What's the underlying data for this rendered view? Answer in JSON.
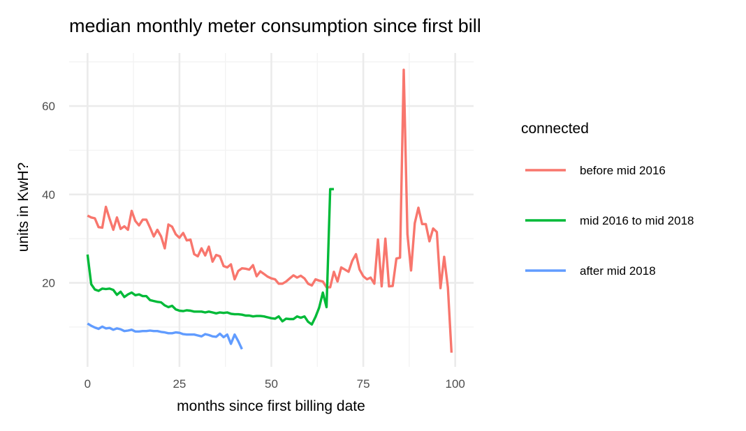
{
  "chart_data": {
    "type": "line",
    "title": "median monthly meter consumption since first bill",
    "xlabel": "months since first billing date",
    "ylabel": "units in KwH?",
    "xlim": [
      -5,
      105
    ],
    "ylim": [
      1,
      72
    ],
    "x_ticks": [
      0,
      25,
      50,
      75,
      100
    ],
    "y_ticks": [
      20,
      40,
      60
    ],
    "grid": true,
    "legend": {
      "title": "connected",
      "placement": "right"
    },
    "series": [
      {
        "name": "before mid 2016",
        "color": "#F8766D",
        "x": [
          0,
          1,
          2,
          3,
          4,
          5,
          6,
          7,
          8,
          9,
          10,
          11,
          12,
          13,
          14,
          15,
          16,
          17,
          18,
          19,
          20,
          21,
          22,
          23,
          24,
          25,
          26,
          27,
          28,
          29,
          30,
          31,
          32,
          33,
          34,
          35,
          36,
          37,
          38,
          39,
          40,
          41,
          42,
          43,
          44,
          45,
          46,
          47,
          48,
          49,
          50,
          51,
          52,
          53,
          54,
          55,
          56,
          57,
          58,
          59,
          60,
          61,
          62,
          63,
          64,
          65,
          66,
          67,
          68,
          69,
          70,
          71,
          72,
          73,
          74,
          75,
          76,
          77,
          78,
          79,
          80,
          81,
          82,
          83,
          84,
          85,
          86,
          87,
          88,
          89,
          90,
          91,
          92,
          93,
          94,
          95,
          96,
          97,
          98,
          99
        ],
        "values": [
          35.2,
          34.8,
          34.6,
          32.6,
          32.5,
          37.2,
          34.5,
          32.0,
          34.8,
          32.2,
          32.8,
          32.0,
          36.3,
          34.0,
          33.0,
          34.3,
          34.3,
          32.5,
          30.5,
          32.0,
          30.5,
          27.8,
          33.2,
          32.7,
          31.0,
          30.2,
          31.3,
          29.6,
          29.8,
          26.5,
          26.0,
          27.8,
          26.2,
          28.2,
          24.8,
          26.3,
          26.0,
          23.8,
          23.5,
          24.2,
          20.8,
          22.7,
          23.3,
          23.2,
          23.0,
          24.0,
          21.5,
          22.6,
          22.0,
          21.4,
          21.0,
          20.8,
          19.8,
          19.8,
          20.3,
          21.0,
          21.7,
          21.2,
          21.6,
          21.0,
          19.8,
          19.4,
          20.8,
          20.5,
          20.3,
          19.0,
          19.0,
          22.5,
          20.3,
          23.5,
          23.0,
          22.5,
          25.0,
          26.5,
          23.0,
          21.5,
          20.8,
          21.2,
          19.8,
          29.8,
          19.2,
          30.0,
          19.2,
          19.3,
          25.5,
          25.7,
          68.2,
          31.0,
          22.8,
          33.5,
          37.0,
          33.3,
          33.3,
          29.4,
          32.3,
          31.5,
          18.8,
          25.9,
          19.0,
          4.2
        ]
      },
      {
        "name": "mid 2016 to mid 2018",
        "color": "#00BA38",
        "x": [
          0,
          1,
          2,
          3,
          4,
          5,
          6,
          7,
          8,
          9,
          10,
          11,
          12,
          13,
          14,
          15,
          16,
          17,
          18,
          19,
          20,
          21,
          22,
          23,
          24,
          25,
          26,
          27,
          28,
          29,
          30,
          31,
          32,
          33,
          34,
          35,
          36,
          37,
          38,
          39,
          40,
          41,
          42,
          43,
          44,
          45,
          46,
          47,
          48,
          49,
          50,
          51,
          52,
          53,
          54,
          55,
          56,
          57,
          58,
          59,
          60,
          61,
          62,
          63,
          64,
          65,
          66,
          67
        ],
        "values": [
          26.4,
          19.7,
          18.5,
          18.2,
          18.7,
          18.6,
          18.7,
          18.4,
          17.3,
          18.0,
          16.8,
          17.4,
          17.8,
          17.2,
          17.4,
          17.0,
          17.0,
          16.1,
          15.9,
          15.7,
          15.6,
          14.9,
          14.5,
          14.8,
          14.0,
          13.7,
          13.6,
          13.8,
          13.7,
          13.5,
          13.5,
          13.5,
          13.3,
          13.5,
          13.3,
          13.1,
          13.3,
          13.2,
          13.3,
          13.0,
          12.9,
          12.9,
          12.8,
          12.6,
          12.6,
          12.4,
          12.5,
          12.5,
          12.4,
          12.2,
          12.0,
          11.9,
          12.4,
          11.3,
          11.9,
          11.8,
          11.8,
          12.4,
          12.1,
          12.4,
          11.2,
          10.6,
          12.3,
          14.4,
          17.8,
          14.5,
          41.2,
          41.2
        ]
      },
      {
        "name": "after mid 2018",
        "color": "#619CFF",
        "x": [
          0,
          1,
          2,
          3,
          4,
          5,
          6,
          7,
          8,
          9,
          10,
          11,
          12,
          13,
          14,
          15,
          16,
          17,
          18,
          19,
          20,
          21,
          22,
          23,
          24,
          25,
          26,
          27,
          28,
          29,
          30,
          31,
          32,
          33,
          34,
          35,
          36,
          37,
          38,
          39,
          40,
          41,
          42
        ],
        "values": [
          10.8,
          10.3,
          9.9,
          9.6,
          10.1,
          9.7,
          9.8,
          9.4,
          9.7,
          9.5,
          9.1,
          9.2,
          9.4,
          9.0,
          9.0,
          9.1,
          9.1,
          9.2,
          9.1,
          9.1,
          8.9,
          8.8,
          8.6,
          8.6,
          8.8,
          8.7,
          8.4,
          8.3,
          8.3,
          8.3,
          8.1,
          7.9,
          8.4,
          8.2,
          7.9,
          7.8,
          8.5,
          7.7,
          8.3,
          6.2,
          8.3,
          6.8,
          5.0
        ]
      }
    ]
  }
}
